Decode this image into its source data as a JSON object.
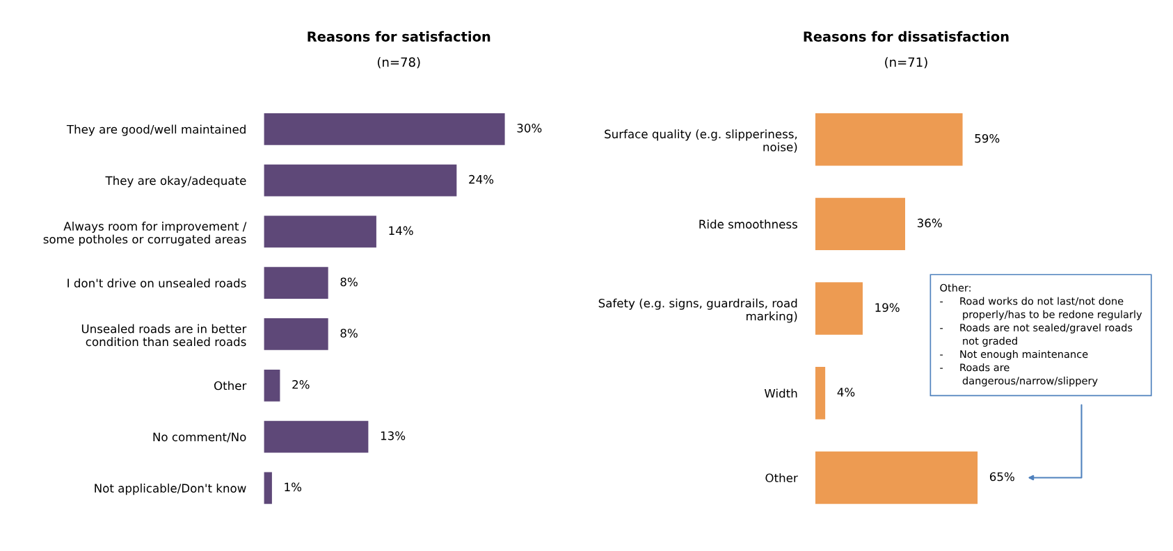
{
  "chart_data": [
    {
      "type": "bar",
      "orientation": "horizontal",
      "title": "Reasons for satisfaction",
      "subtitle": "(n=78)",
      "categories": [
        "They are good/well maintained",
        "They are okay/adequate",
        "Always room for improvement /\nsome potholes or corrugated areas",
        "I don't drive on unsealed roads",
        "Unsealed roads are in better\ncondition than sealed roads",
        "Other",
        "No comment/No",
        "Not applicable/Don't know"
      ],
      "values": [
        30,
        24,
        14,
        8,
        8,
        2,
        13,
        1
      ],
      "color": "#5e4878",
      "data_labels": true,
      "value_labels": [
        "30%",
        "24%",
        "14%",
        "8%",
        "8%",
        "2%",
        "13%",
        "1%"
      ],
      "grid": false,
      "legend": false
    },
    {
      "type": "bar",
      "orientation": "horizontal",
      "title": "Reasons for dissatisfaction",
      "subtitle": "(n=71)",
      "categories": [
        "Surface quality (e.g. slipperiness,\nnoise)",
        "Ride smoothness",
        "Safety (e.g. signs, guardrails, road\nmarking)",
        "Width",
        "Other"
      ],
      "values": [
        59,
        36,
        19,
        4,
        65
      ],
      "color": "#ed9b52",
      "data_labels": true,
      "value_labels": [
        "59%",
        "36%",
        "19%",
        "4%",
        "65%"
      ],
      "grid": false,
      "legend": false,
      "annotations": [
        "Other:\n-     Road works do not last/not done\n       properly/has to be redone regularly\n-     Roads are not sealed/gravel roads\n       not graded\n-     Not enough maintenance\n-     Roads are\n       dangerous/narrow/slippery"
      ]
    }
  ]
}
